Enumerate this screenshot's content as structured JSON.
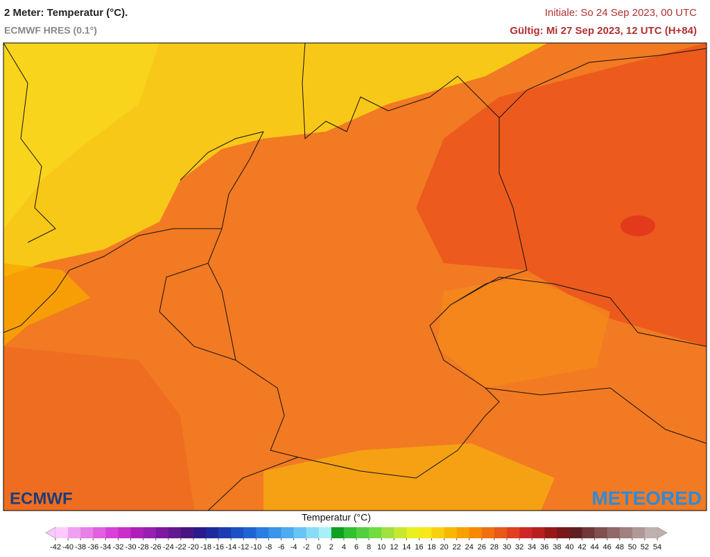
{
  "header": {
    "title": "2 Meter: Temperatur (°C).",
    "subtitle": "ECMWF HRES (0.1°)",
    "init": "Initiale: So 24 Sep 2023, 00 UTC",
    "valid": "Gültig: Mi 27 Sep 2023, 12 UTC (H+84)"
  },
  "logos": {
    "left": "ECMWF",
    "right": "METEORED"
  },
  "legend": {
    "title": "Temperatur (°C)",
    "ticks": [
      -42,
      -40,
      -38,
      -36,
      -34,
      -32,
      -30,
      -28,
      -26,
      -24,
      -22,
      -20,
      -18,
      -16,
      -14,
      -12,
      -10,
      -8,
      -6,
      -4,
      -2,
      0,
      2,
      4,
      6,
      8,
      10,
      12,
      14,
      16,
      18,
      20,
      22,
      24,
      26,
      28,
      30,
      32,
      34,
      36,
      38,
      40,
      42,
      44,
      46,
      48,
      50,
      52,
      54
    ],
    "colors": [
      "#ffc8ff",
      "#f0a0f0",
      "#e880e8",
      "#e060e0",
      "#d840d8",
      "#c830c8",
      "#b020b8",
      "#9820b0",
      "#7e18a0",
      "#641890",
      "#4a1480",
      "#2a1a8c",
      "#1e2a9c",
      "#1c3cb0",
      "#1c50c4",
      "#2064d4",
      "#2a7ce0",
      "#3a94ea",
      "#4cacf0",
      "#68c4f4",
      "#88dcf8",
      "#a8f0f8",
      "#10a020",
      "#30c030",
      "#50d040",
      "#70dc40",
      "#a0e040",
      "#c8e830",
      "#e8f020",
      "#f8e818",
      "#f8d010",
      "#f8b800",
      "#f8a000",
      "#f88800",
      "#f07010",
      "#e85818",
      "#e04020",
      "#d02828",
      "#b82020",
      "#981818",
      "#7a1818",
      "#602020",
      "#703838",
      "#805050",
      "#906868",
      "#a08080",
      "#b09898",
      "#c0b0b0"
    ]
  }
}
